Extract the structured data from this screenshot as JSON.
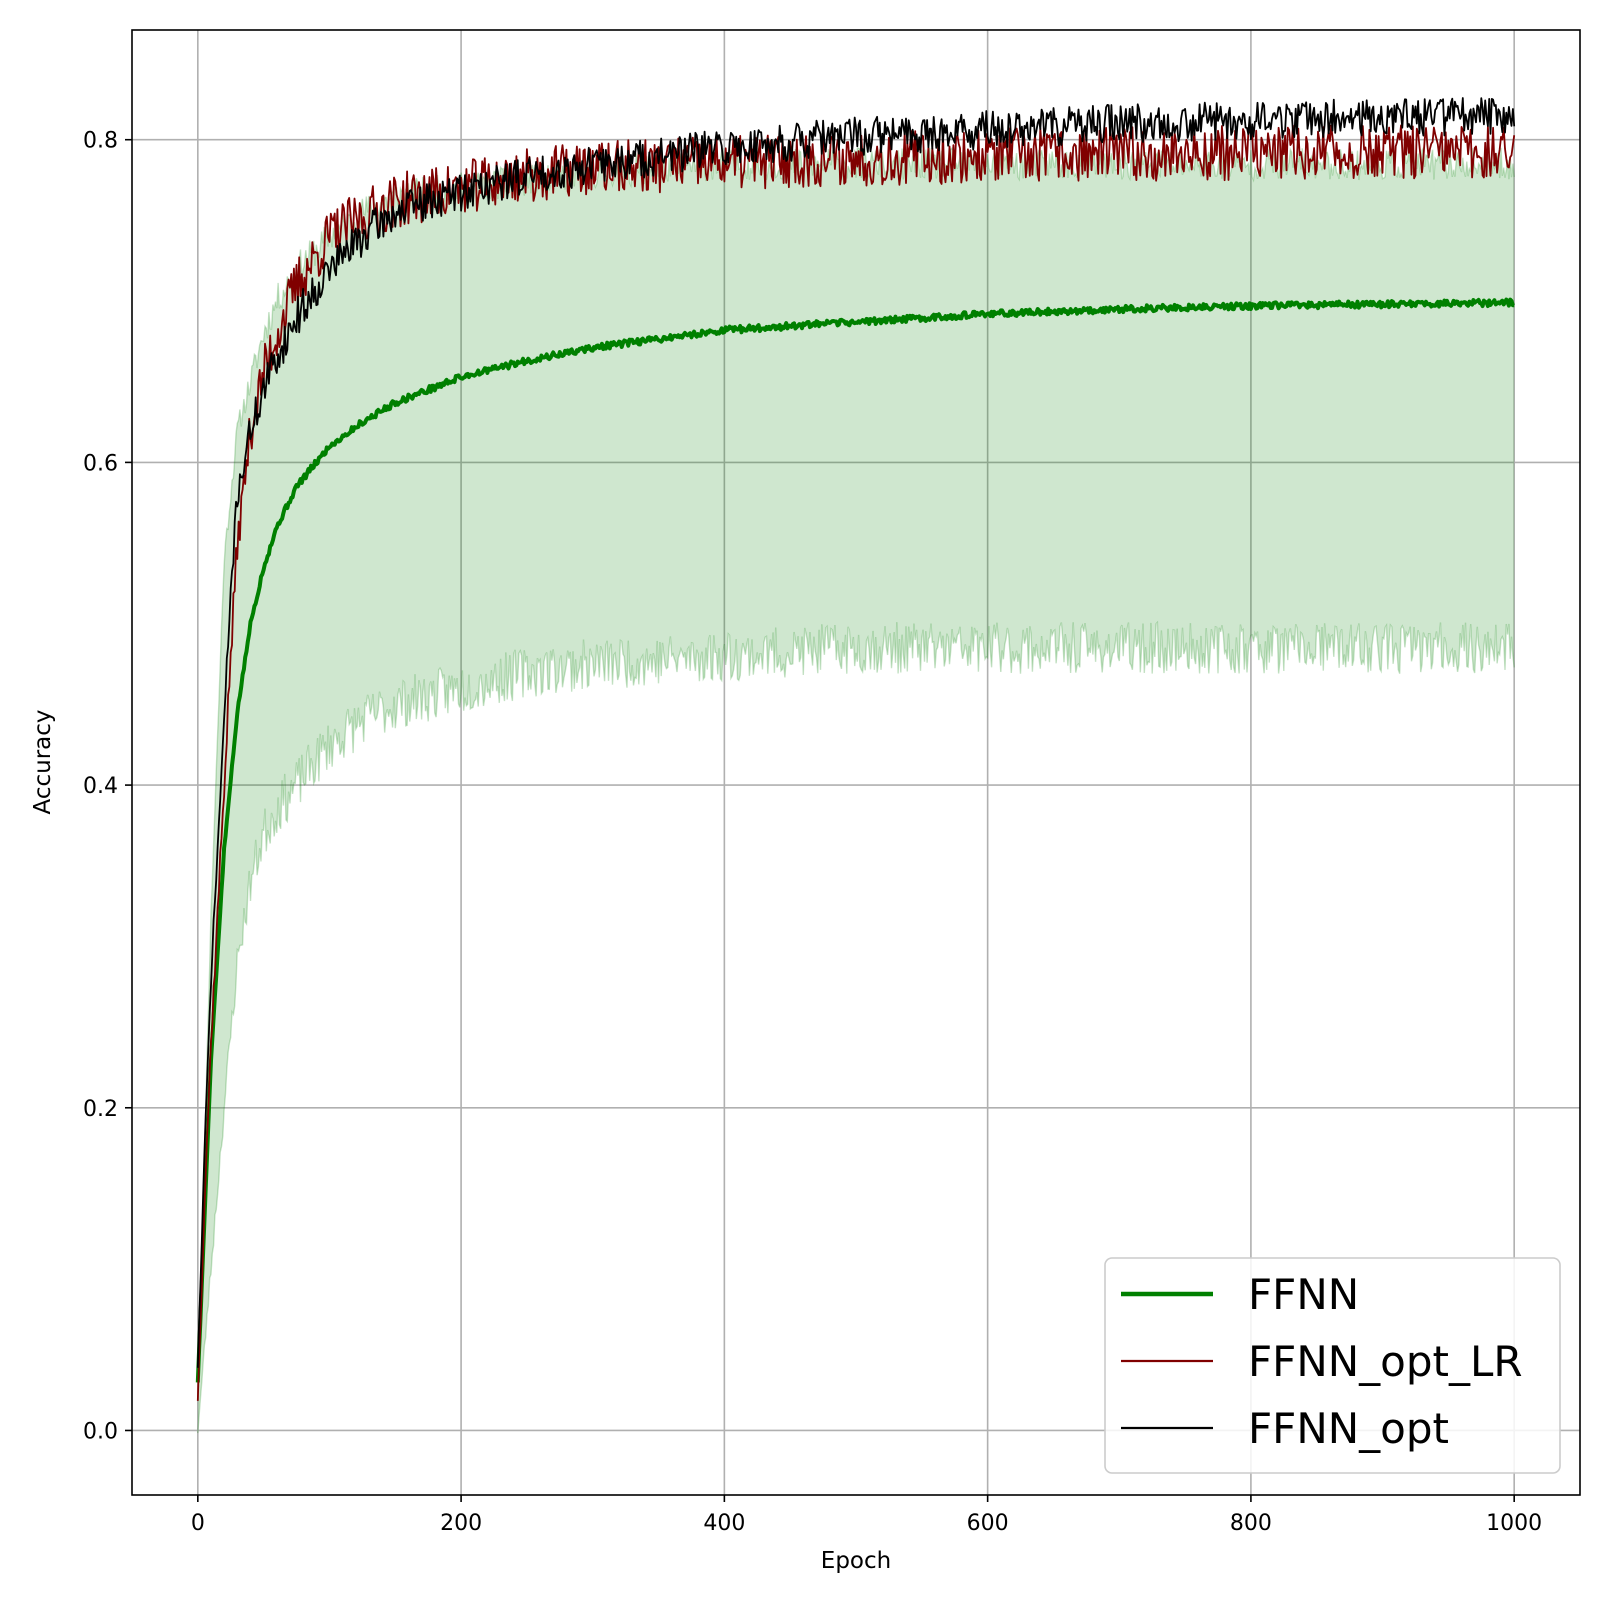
{
  "chart_data": {
    "type": "line",
    "title": "",
    "xlabel": "Epoch",
    "ylabel": "Accuracy",
    "xlim": [
      -50,
      1050
    ],
    "ylim": [
      -0.04,
      0.868
    ],
    "xticks": [
      0,
      200,
      400,
      600,
      800,
      1000
    ],
    "xtick_labels": [
      "0",
      "200",
      "400",
      "600",
      "800",
      "1000"
    ],
    "yticks": [
      0.0,
      0.2,
      0.4,
      0.6,
      0.8
    ],
    "ytick_labels": [
      "0.0",
      "0.2",
      "0.4",
      "0.6",
      "0.8"
    ],
    "grid": true,
    "legend_position": "lower-right",
    "series": [
      {
        "name": "FFNN",
        "color": "#008000",
        "style": "thick",
        "x": [
          0,
          10,
          20,
          30,
          40,
          50,
          60,
          75,
          100,
          125,
          150,
          200,
          250,
          300,
          400,
          500,
          600,
          700,
          800,
          900,
          1000
        ],
        "y": [
          0.03,
          0.23,
          0.36,
          0.445,
          0.5,
          0.535,
          0.56,
          0.585,
          0.61,
          0.625,
          0.637,
          0.653,
          0.663,
          0.671,
          0.682,
          0.687,
          0.692,
          0.695,
          0.697,
          0.698,
          0.699
        ],
        "band": {
          "upper": [
            0.02,
            0.32,
            0.54,
            0.62,
            0.65,
            0.68,
            0.7,
            0.72,
            0.74,
            0.755,
            0.765,
            0.77,
            0.775,
            0.78,
            0.785,
            0.785,
            0.785,
            0.785,
            0.785,
            0.785,
            0.785
          ],
          "lower": [
            0.0,
            0.1,
            0.2,
            0.29,
            0.34,
            0.37,
            0.385,
            0.4,
            0.425,
            0.44,
            0.45,
            0.46,
            0.47,
            0.475,
            0.48,
            0.485,
            0.485,
            0.485,
            0.485,
            0.485,
            0.485
          ]
        }
      },
      {
        "name": "FFNN_opt_LR",
        "color": "#800000",
        "style": "thin",
        "x": [
          0,
          5,
          10,
          15,
          20,
          25,
          30,
          40,
          50,
          60,
          75,
          100,
          125,
          150,
          200,
          250,
          300,
          400,
          500,
          600,
          700,
          800,
          900,
          1000
        ],
        "y": [
          0.02,
          0.14,
          0.24,
          0.32,
          0.4,
          0.48,
          0.55,
          0.62,
          0.655,
          0.68,
          0.71,
          0.74,
          0.752,
          0.762,
          0.77,
          0.778,
          0.782,
          0.786,
          0.788,
          0.79,
          0.791,
          0.792,
          0.792,
          0.792
        ]
      },
      {
        "name": "FFNN_opt",
        "color": "#000000",
        "style": "thin",
        "x": [
          0,
          5,
          10,
          15,
          20,
          25,
          30,
          40,
          50,
          60,
          75,
          100,
          125,
          150,
          200,
          250,
          300,
          400,
          500,
          600,
          700,
          800,
          900,
          1000
        ],
        "y": [
          0.04,
          0.17,
          0.28,
          0.36,
          0.44,
          0.52,
          0.58,
          0.62,
          0.645,
          0.665,
          0.69,
          0.72,
          0.74,
          0.755,
          0.768,
          0.778,
          0.784,
          0.795,
          0.802,
          0.806,
          0.81,
          0.812,
          0.814,
          0.815
        ]
      }
    ]
  }
}
